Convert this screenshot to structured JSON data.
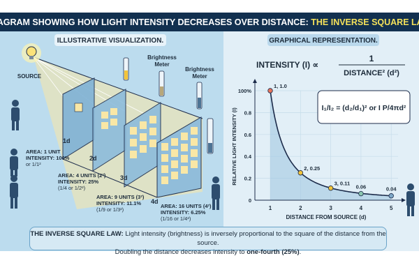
{
  "title": {
    "main": "DIAGRAM SHOWING HOW LIGHT INTENSITY DECREASES OVER DISTANCE: ",
    "highlight": "THE INVERSE SQUARE LAW"
  },
  "left": {
    "heading": "ILLUSTRATIVE VISUALIZATION.",
    "source_label": "SOURCE",
    "meter_label_1": "Brightness",
    "meter_label_2": "Meter",
    "steps": [
      {
        "d": "1d",
        "area": "AREA: 1 UNIT",
        "intensity": "INTENSITY: 100%",
        "fraction": "or 1/1²"
      },
      {
        "d": "2d",
        "area": "AREA: 4 UNITS (2²)",
        "intensity": "INTENSITY: 25%",
        "fraction": "(1/4 or 1/2²)"
      },
      {
        "d": "3d",
        "area": "AREA: 9 UNITS (3²)",
        "intensity": "INTENSITY: 11.1%",
        "fraction": "(1/9 or 1/3²)"
      },
      {
        "d": "4d",
        "area": "AREA: 16 UNITS (4²)",
        "intensity": "INTENSITY: 6.25%",
        "fraction": "(1/16 or 1/4²)"
      }
    ],
    "meter_levels": [
      0.45,
      0.3,
      0.2,
      0.12
    ]
  },
  "right": {
    "heading": "GRAPHICAL REPRESENTATION.",
    "formula_lhs": "INTENSITY (I) ∝",
    "formula_num": "1",
    "formula_den": "DISTANCE² (d²)",
    "box_formula": "I₁/I₂ = (d₂/d₁)² or I P/4πd²"
  },
  "chart_data": {
    "type": "line",
    "xlabel": "DISTANCE FROM SOURCE (d)",
    "ylabel": "RELATIVE LIGHT INTENSITY (I)",
    "x": [
      1,
      2,
      3,
      4,
      5
    ],
    "y": [
      1.0,
      0.25,
      0.11,
      0.06,
      0.04
    ],
    "point_labels": [
      "1, 1.0",
      "2, 0.25",
      "3, 0.11",
      "0.06",
      "0.04"
    ],
    "point_colors": [
      "#e8735a",
      "#f2c43a",
      "#f2c43a",
      "#8cc7b0",
      "#7fa9c8"
    ],
    "xticks": [
      "1",
      "2",
      "3",
      "4",
      "5"
    ],
    "yticks": [
      "0",
      "0.2",
      "0.4",
      "0.6",
      "0.8",
      "100%"
    ],
    "xlim": [
      0.5,
      5.5
    ],
    "ylim": [
      0,
      1.05
    ],
    "grid": true,
    "area_fill": true,
    "curve_color": "#1c2b4a"
  },
  "footer": {
    "bold_lead": "THE INVERSE SQUARE LAW:",
    "text": " Light intensity (brightness) is inversely proportional to the square of the distance from the source.",
    "line2": "Doubling the distance decreases intensity to ",
    "line2_bold": "one-fourth (25%)",
    "line2_end": "."
  },
  "colors": {
    "banner": "#12304f",
    "highlight": "#f5e25a",
    "left_bg": "#bcdcee",
    "right_bg": "#e2eff7",
    "glow": "#f9e7a6"
  }
}
